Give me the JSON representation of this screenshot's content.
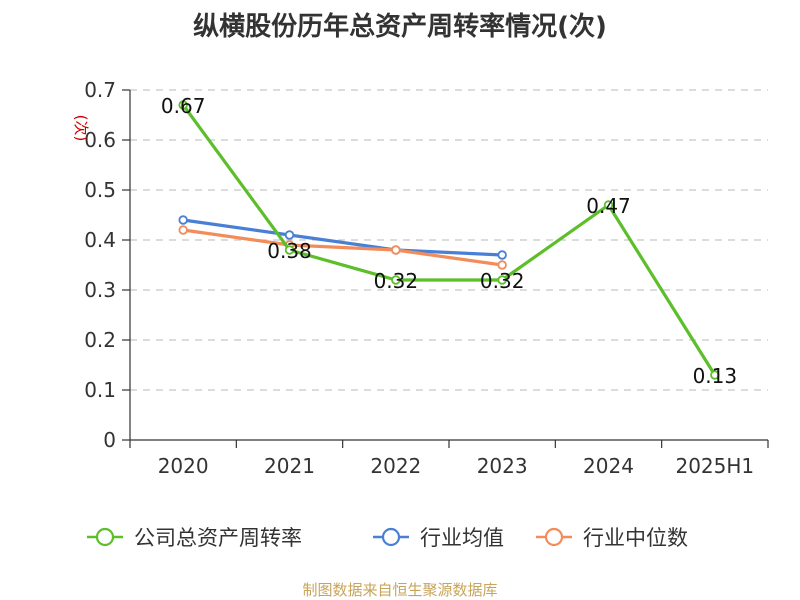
{
  "chart_data": {
    "type": "line",
    "title": "纵横股份历年总资产周转率情况(次)",
    "ylabel": "(次)",
    "xlabel": "",
    "categories": [
      "2020",
      "2021",
      "2022",
      "2023",
      "2024",
      "2025H1"
    ],
    "ylim": [
      0,
      0.7
    ],
    "yticks": [
      "0",
      "0.1",
      "0.2",
      "0.3",
      "0.4",
      "0.5",
      "0.6",
      "0.7"
    ],
    "grid": true,
    "legend_position": "bottom",
    "series": [
      {
        "name": "公司总资产周转率",
        "color": "#5cbf2a",
        "values": [
          0.67,
          0.38,
          0.32,
          0.32,
          0.47,
          0.13
        ],
        "labels": [
          "0.67",
          "0.38",
          "0.32",
          "0.32",
          "0.47",
          "0.13"
        ],
        "show_labels": true
      },
      {
        "name": "行业均值",
        "color": "#4a7fd6",
        "values": [
          0.44,
          0.41,
          0.38,
          0.37,
          null,
          null
        ],
        "show_labels": false
      },
      {
        "name": "行业中位数",
        "color": "#f28c5a",
        "values": [
          0.42,
          0.39,
          0.38,
          0.35,
          null,
          null
        ],
        "show_labels": false
      }
    ]
  },
  "source_text": "制图数据来自恒生聚源数据库"
}
